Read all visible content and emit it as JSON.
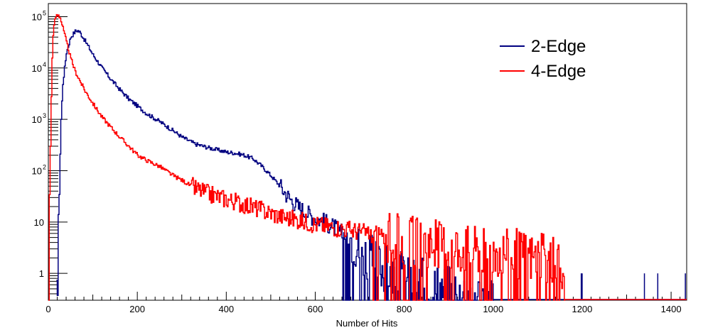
{
  "chart_data": {
    "type": "line",
    "title": "",
    "xlabel": "Number of Hits",
    "ylabel": "",
    "xlim": [
      0,
      1435
    ],
    "ylim": [
      0.3,
      180000
    ],
    "yscale": "log",
    "grid": false,
    "legend_position": "top-right",
    "x_ticks": [
      {
        "value": 0,
        "label": "0"
      },
      {
        "value": 200,
        "label": "200"
      },
      {
        "value": 400,
        "label": "400"
      },
      {
        "value": 600,
        "label": "600"
      },
      {
        "value": 800,
        "label": "800"
      },
      {
        "value": 1000,
        "label": "1000"
      },
      {
        "value": 1200,
        "label": "1200"
      },
      {
        "value": 1400,
        "label": "1400"
      }
    ],
    "y_ticks": [
      {
        "value": 1,
        "label": "1"
      },
      {
        "value": 10,
        "label": "10"
      },
      {
        "value": 100,
        "label": "10",
        "exp": "2"
      },
      {
        "value": 1000,
        "label": "10",
        "exp": "3"
      },
      {
        "value": 10000,
        "label": "10",
        "exp": "4"
      },
      {
        "value": 100000,
        "label": "10",
        "exp": "5"
      }
    ],
    "series": [
      {
        "name": "2-Edge",
        "color": "#000080",
        "points": [
          [
            18,
            0.3
          ],
          [
            20,
            1
          ],
          [
            22,
            10
          ],
          [
            25,
            100
          ],
          [
            28,
            1000
          ],
          [
            32,
            5000
          ],
          [
            40,
            20000
          ],
          [
            50,
            40000
          ],
          [
            60,
            52000
          ],
          [
            65,
            54000
          ],
          [
            70,
            50000
          ],
          [
            80,
            36000
          ],
          [
            100,
            18000
          ],
          [
            120,
            10000
          ],
          [
            140,
            6000
          ],
          [
            160,
            3800
          ],
          [
            180,
            2500
          ],
          [
            200,
            1800
          ],
          [
            220,
            1300
          ],
          [
            250,
            900
          ],
          [
            280,
            600
          ],
          [
            300,
            450
          ],
          [
            330,
            330
          ],
          [
            360,
            280
          ],
          [
            400,
            230
          ],
          [
            420,
            220
          ],
          [
            440,
            200
          ],
          [
            460,
            170
          ],
          [
            480,
            120
          ],
          [
            500,
            80
          ],
          [
            520,
            50
          ],
          [
            540,
            30
          ],
          [
            560,
            20
          ],
          [
            580,
            15
          ],
          [
            600,
            12
          ],
          [
            620,
            10
          ],
          [
            640,
            8
          ],
          [
            660,
            6
          ],
          [
            680,
            5
          ],
          [
            700,
            3
          ],
          [
            720,
            2
          ],
          [
            740,
            1.5
          ],
          [
            760,
            1.2
          ],
          [
            780,
            1
          ],
          [
            800,
            0.8
          ],
          [
            850,
            0.6
          ],
          [
            900,
            0.5
          ],
          [
            950,
            0.4
          ],
          [
            1000,
            0.35
          ]
        ],
        "isolated_bins": [
          1198,
          1200,
          1340,
          1370,
          1432
        ]
      },
      {
        "name": "4-Edge",
        "color": "#ff0000",
        "points": [
          [
            0,
            0.3
          ],
          [
            2,
            30
          ],
          [
            4,
            300
          ],
          [
            6,
            3000
          ],
          [
            8,
            15000
          ],
          [
            10,
            40000
          ],
          [
            12,
            70000
          ],
          [
            15,
            95000
          ],
          [
            18,
            108000
          ],
          [
            22,
            110000
          ],
          [
            26,
            95000
          ],
          [
            30,
            70000
          ],
          [
            40,
            32000
          ],
          [
            50,
            15000
          ],
          [
            60,
            8500
          ],
          [
            80,
            3800
          ],
          [
            100,
            2000
          ],
          [
            120,
            1100
          ],
          [
            140,
            700
          ],
          [
            160,
            450
          ],
          [
            180,
            300
          ],
          [
            200,
            200
          ],
          [
            220,
            160
          ],
          [
            250,
            120
          ],
          [
            280,
            80
          ],
          [
            300,
            65
          ],
          [
            330,
            45
          ],
          [
            360,
            35
          ],
          [
            400,
            28
          ],
          [
            440,
            22
          ],
          [
            480,
            17
          ],
          [
            520,
            13
          ],
          [
            560,
            11
          ],
          [
            600,
            9
          ],
          [
            640,
            8
          ],
          [
            680,
            7
          ],
          [
            720,
            6
          ],
          [
            760,
            5
          ],
          [
            800,
            4.5
          ],
          [
            850,
            4
          ],
          [
            900,
            3.5
          ],
          [
            950,
            3
          ],
          [
            1000,
            2.8
          ],
          [
            1050,
            2.5
          ],
          [
            1100,
            2
          ],
          [
            1150,
            1.5
          ],
          [
            1160,
            0.3
          ]
        ]
      }
    ]
  }
}
